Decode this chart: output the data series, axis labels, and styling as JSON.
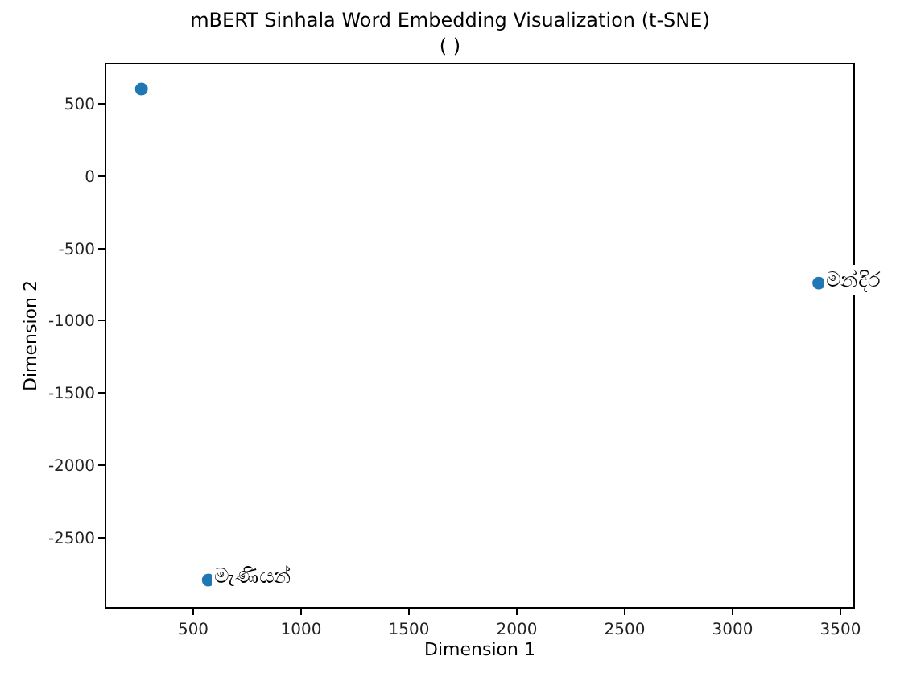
{
  "chart_data": {
    "type": "scatter",
    "title": "mBERT Sinhala Word Embedding Visualization (t-SNE)",
    "subtitle": "( )",
    "xlabel": "Dimension 1",
    "ylabel": "Dimension 2",
    "x": [
      260,
      3400,
      570
    ],
    "series": [
      {
        "color": "#1f77b4",
        "values": [
          600,
          -740,
          -2790
        ]
      }
    ],
    "annotations": [
      {
        "text": "මන්දිර",
        "x": 3400,
        "y": -740
      },
      {
        "text": "මැණියන්",
        "x": 570,
        "y": -2790
      }
    ],
    "xlim": [
      97,
      3560
    ],
    "xticks": [
      500,
      1000,
      1500,
      2000,
      2500,
      3000,
      3500
    ],
    "ylim": [
      -2976,
      770
    ],
    "yticks": [
      500,
      0,
      -500,
      -1000,
      -1500,
      -2000,
      -2500
    ],
    "marker": "circle"
  }
}
